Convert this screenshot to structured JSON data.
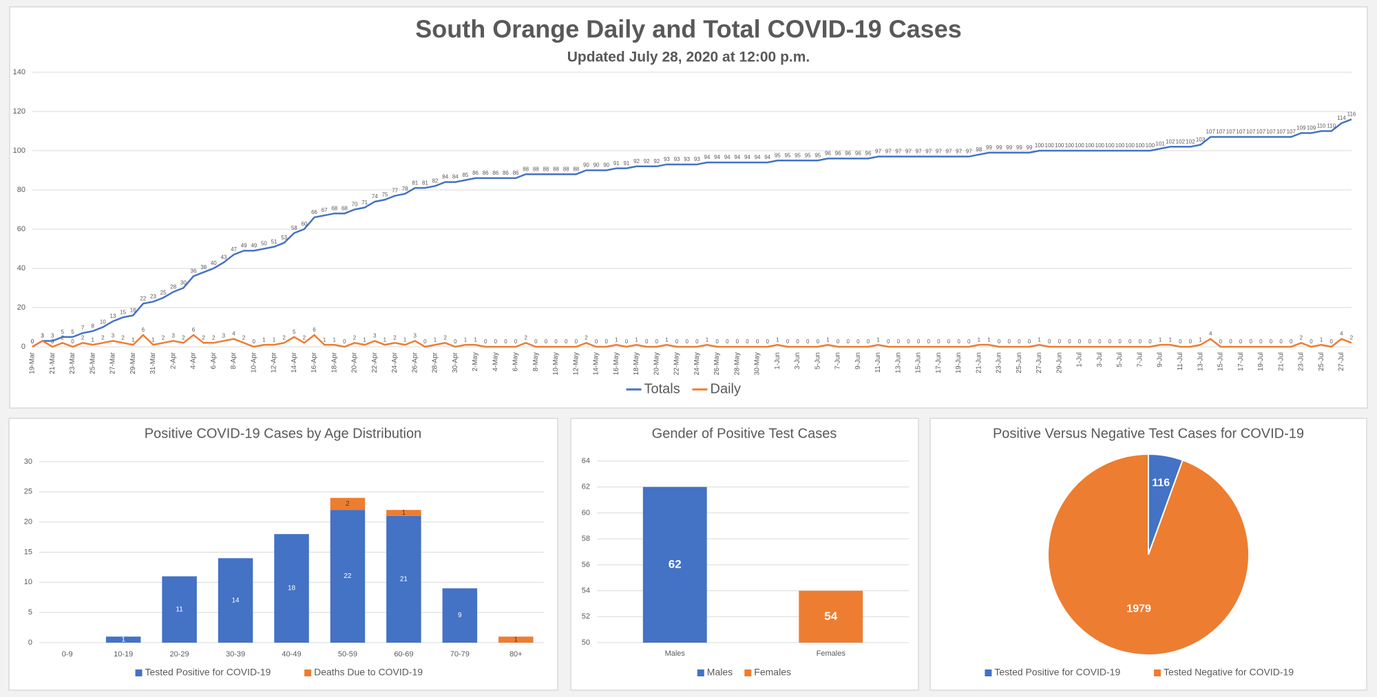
{
  "chart_data": [
    {
      "type": "line",
      "title": "South Orange Daily and Total COVID-19 Cases",
      "subtitle": "Updated July 28, 2020 at 12:00 p.m.",
      "categories": [
        "19-Mar",
        null,
        "21-Mar",
        null,
        "23-Mar",
        null,
        "25-Mar",
        null,
        "27-Mar",
        null,
        "29-Mar",
        null,
        "31-Mar",
        null,
        "2-Apr",
        null,
        "4-Apr",
        null,
        "6-Apr",
        null,
        "8-Apr",
        null,
        "10-Apr",
        null,
        "12-Apr",
        null,
        "14-Apr",
        null,
        "16-Apr",
        null,
        "18-Apr",
        null,
        "20-Apr",
        null,
        "22-Apr",
        null,
        "24-Apr",
        null,
        "26-Apr",
        null,
        "28-Apr",
        null,
        "30-Apr",
        null,
        "2-May",
        null,
        "4-May",
        null,
        "6-May",
        null,
        "8-May",
        null,
        "10-May",
        null,
        "12-May",
        null,
        "14-May",
        null,
        "16-May",
        null,
        "18-May",
        null,
        "20-May",
        null,
        "22-May",
        null,
        "24-May",
        null,
        "26-May",
        null,
        "28-May",
        null,
        "30-May",
        null,
        "1-Jun",
        null,
        "3-Jun",
        null,
        "5-Jun",
        null,
        "7-Jun",
        null,
        "9-Jun",
        null,
        "11-Jun",
        null,
        "13-Jun",
        null,
        "15-Jun",
        null,
        "17-Jun",
        null,
        "19-Jun",
        null,
        "21-Jun",
        null,
        "23-Jun",
        null,
        "25-Jun",
        null,
        "27-Jun",
        null,
        "29-Jun",
        null,
        "1-Jul",
        null,
        "3-Jul",
        null,
        "5-Jul",
        null,
        "7-Jul",
        null,
        "9-Jul",
        null,
        "11-Jul",
        null,
        "13-Jul",
        null,
        "15-Jul",
        null,
        "17-Jul",
        null,
        "19-Jul",
        null,
        "21-Jul",
        null,
        "23-Jul",
        null,
        "25-Jul",
        null,
        "27-Jul",
        null
      ],
      "series": [
        {
          "name": "Totals",
          "color": "#4472c4",
          "values": [
            0,
            3,
            3,
            5,
            5,
            7,
            8,
            10,
            13,
            15,
            16,
            22,
            23,
            25,
            28,
            30,
            36,
            38,
            40,
            43,
            47,
            49,
            49,
            50,
            51,
            53,
            58,
            60,
            66,
            67,
            68,
            68,
            70,
            71,
            74,
            75,
            77,
            78,
            81,
            81,
            82,
            84,
            84,
            85,
            86,
            86,
            86,
            86,
            86,
            88,
            88,
            88,
            88,
            88,
            88,
            90,
            90,
            90,
            91,
            91,
            92,
            92,
            92,
            93,
            93,
            93,
            93,
            94,
            94,
            94,
            94,
            94,
            94,
            94,
            95,
            95,
            95,
            95,
            95,
            96,
            96,
            96,
            96,
            96,
            97,
            97,
            97,
            97,
            97,
            97,
            97,
            97,
            97,
            97,
            98,
            99,
            99,
            99,
            99,
            99,
            100,
            100,
            100,
            100,
            100,
            100,
            100,
            100,
            100,
            100,
            100,
            100,
            101,
            102,
            102,
            102,
            103,
            107,
            107,
            107,
            107,
            107,
            107,
            107,
            107,
            107,
            109,
            109,
            110,
            110,
            114,
            116
          ]
        },
        {
          "name": "Daily",
          "color": "#ed7d31",
          "values": [
            0,
            3,
            0,
            2,
            0,
            2,
            1,
            2,
            3,
            2,
            1,
            6,
            1,
            2,
            3,
            2,
            6,
            2,
            2,
            3,
            4,
            2,
            0,
            1,
            1,
            2,
            5,
            2,
            6,
            1,
            1,
            0,
            2,
            1,
            3,
            1,
            2,
            1,
            3,
            0,
            1,
            2,
            0,
            1,
            1,
            0,
            0,
            0,
            0,
            2,
            0,
            0,
            0,
            0,
            0,
            2,
            0,
            0,
            1,
            0,
            1,
            0,
            0,
            1,
            0,
            0,
            0,
            1,
            0,
            0,
            0,
            0,
            0,
            0,
            1,
            0,
            0,
            0,
            0,
            1,
            0,
            0,
            0,
            0,
            1,
            0,
            0,
            0,
            0,
            0,
            0,
            0,
            0,
            0,
            1,
            1,
            0,
            0,
            0,
            0,
            1,
            0,
            0,
            0,
            0,
            0,
            0,
            0,
            0,
            0,
            0,
            0,
            1,
            1,
            0,
            0,
            1,
            4,
            0,
            0,
            0,
            0,
            0,
            0,
            0,
            0,
            2,
            0,
            1,
            0,
            4,
            2
          ]
        }
      ],
      "ylim": [
        0,
        140
      ],
      "yticks": [
        0,
        20,
        40,
        60,
        80,
        100,
        120,
        140
      ],
      "grid": true,
      "legend": "bottom"
    },
    {
      "type": "stacked-bar",
      "title": "Positive COVID-19 Cases by Age Distribution",
      "categories": [
        "0-9",
        "10-19",
        "20-29",
        "30-39",
        "40-49",
        "50-59",
        "60-69",
        "70-79",
        "80+"
      ],
      "series": [
        {
          "name": "Tested Positive for COVID-19",
          "color": "#4472c4",
          "values": [
            0,
            1,
            11,
            14,
            18,
            22,
            21,
            9,
            0
          ]
        },
        {
          "name": "Deaths Due to COVID-19",
          "color": "#ed7d31",
          "values": [
            0,
            0,
            0,
            0,
            0,
            2,
            1,
            0,
            1
          ]
        }
      ],
      "ylim": [
        0,
        30
      ],
      "yticks": [
        0,
        5,
        10,
        15,
        20,
        25,
        30
      ],
      "grid": true,
      "legend": "bottom"
    },
    {
      "type": "bar",
      "title": "Gender of Positive Test Cases",
      "categories": [
        "Males",
        "Females"
      ],
      "values": [
        62,
        54
      ],
      "colors": [
        "#4472c4",
        "#ed7d31"
      ],
      "ylim": [
        50,
        64
      ],
      "yticks": [
        50,
        52,
        54,
        56,
        58,
        60,
        62,
        64
      ],
      "grid": true,
      "legend": "bottom"
    },
    {
      "type": "pie",
      "title": "Positive Versus Negative Test Cases for COVID-19",
      "labels": [
        "Tested Positive for COVID-19",
        "Tested Negative for COVID-19"
      ],
      "values": [
        116,
        1979
      ],
      "colors": [
        "#4472c4",
        "#ed7d31"
      ],
      "legend": "bottom"
    }
  ]
}
